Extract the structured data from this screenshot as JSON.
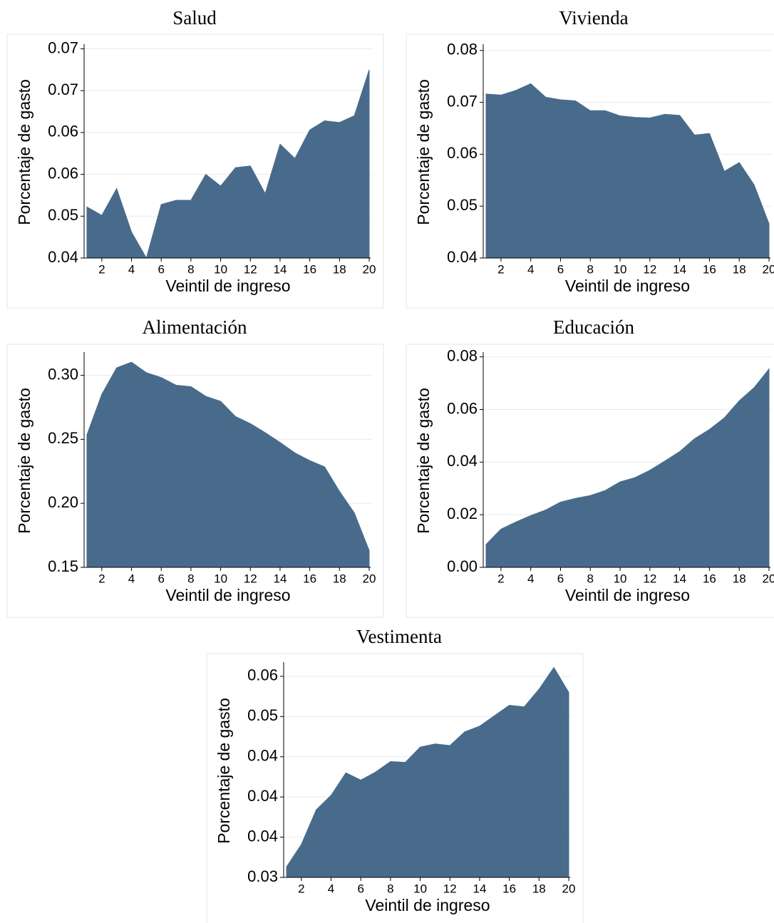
{
  "chart_data": [
    {
      "type": "area",
      "title": "Salud",
      "x_label": "Veintil de ingreso",
      "y_label": "Porcentaje de gasto",
      "color": "#486b8c",
      "x": [
        1,
        2,
        3,
        4,
        5,
        6,
        7,
        8,
        9,
        10,
        11,
        12,
        13,
        14,
        15,
        16,
        17,
        18,
        19,
        20
      ],
      "values": [
        0.0511,
        0.0501,
        0.0533,
        0.0481,
        0.045,
        0.0514,
        0.0519,
        0.0519,
        0.055,
        0.0536,
        0.0558,
        0.056,
        0.0527,
        0.0586,
        0.0569,
        0.0603,
        0.0614,
        0.0612,
        0.062,
        0.0675
      ],
      "xlim": [
        1,
        20
      ],
      "xticks": [
        2,
        4,
        6,
        8,
        10,
        12,
        14,
        16,
        18,
        20
      ],
      "ylim": [
        0.045,
        0.0703
      ],
      "yticks": [
        {
          "value": 0.045,
          "label": "0.04"
        },
        {
          "value": 0.05,
          "label": "0.05"
        },
        {
          "value": 0.055,
          "label": "0.06"
        },
        {
          "value": 0.06,
          "label": "0.06"
        },
        {
          "value": 0.065,
          "label": "0.07"
        },
        {
          "value": 0.07,
          "label": "0.07"
        }
      ],
      "grid": true
    },
    {
      "type": "area",
      "title": "Vivienda",
      "x_label": "Veintil de ingreso",
      "y_label": "Porcentaje de gasto",
      "color": "#486b8c",
      "x": [
        1,
        2,
        3,
        4,
        5,
        6,
        7,
        8,
        9,
        10,
        11,
        12,
        13,
        14,
        15,
        16,
        17,
        18,
        19,
        20
      ],
      "values": [
        0.0716,
        0.0714,
        0.0723,
        0.0736,
        0.071,
        0.0705,
        0.0703,
        0.0684,
        0.0684,
        0.0674,
        0.0671,
        0.067,
        0.0677,
        0.0675,
        0.0637,
        0.064,
        0.0567,
        0.0584,
        0.0541,
        0.0466
      ],
      "xlim": [
        1,
        20
      ],
      "xticks": [
        2,
        4,
        6,
        8,
        10,
        12,
        14,
        16,
        18,
        20
      ],
      "ylim": [
        0.04,
        0.0808
      ],
      "yticks": [
        0.04,
        0.05,
        0.06,
        0.07,
        0.08
      ],
      "grid": true
    },
    {
      "type": "area",
      "title": "Alimentación",
      "x_label": "Veintil de ingreso",
      "y_label": "Porcentaje de gasto",
      "color": "#486b8c",
      "x": [
        1,
        2,
        3,
        4,
        5,
        6,
        7,
        8,
        9,
        10,
        11,
        12,
        13,
        14,
        15,
        16,
        17,
        18,
        19,
        20
      ],
      "values": [
        0.2536,
        0.2852,
        0.3059,
        0.3103,
        0.3021,
        0.2983,
        0.2923,
        0.2912,
        0.2836,
        0.2797,
        0.2678,
        0.2623,
        0.2552,
        0.2476,
        0.2394,
        0.2334,
        0.2285,
        0.2094,
        0.1925,
        0.1631
      ],
      "xlim": [
        1,
        20
      ],
      "xticks": [
        2,
        4,
        6,
        8,
        10,
        12,
        14,
        16,
        18,
        20
      ],
      "ylim": [
        0.15,
        0.3165
      ],
      "yticks": [
        0.15,
        {
          "value": 0.2,
          "label": "0.20"
        },
        0.25,
        {
          "value": 0.3,
          "label": "0.30"
        }
      ],
      "grid": true
    },
    {
      "type": "area",
      "title": "Educación",
      "x_label": "Veintil de ingreso",
      "y_label": "Porcentaje de gasto",
      "color": "#486b8c",
      "x": [
        1,
        2,
        3,
        4,
        5,
        6,
        7,
        8,
        9,
        10,
        11,
        12,
        13,
        14,
        15,
        16,
        17,
        18,
        19,
        20
      ],
      "values": [
        0.0087,
        0.0145,
        0.0172,
        0.0197,
        0.0218,
        0.0248,
        0.0262,
        0.0273,
        0.0292,
        0.0325,
        0.0341,
        0.0369,
        0.0404,
        0.044,
        0.0489,
        0.0524,
        0.0568,
        0.0633,
        0.0683,
        0.0754
      ],
      "xlim": [
        1,
        20
      ],
      "xticks": [
        2,
        4,
        6,
        8,
        10,
        12,
        14,
        16,
        18,
        20
      ],
      "ylim": [
        0,
        0.081
      ],
      "yticks": [
        {
          "value": 0,
          "label": "0.00"
        },
        0.02,
        0.04,
        0.06,
        0.08
      ],
      "grid": true
    },
    {
      "type": "area",
      "title": "Vestimenta",
      "x_label": "Veintil de ingreso",
      "y_label": "Porcentaje de gasto",
      "color": "#486b8c",
      "x": [
        1,
        2,
        3,
        4,
        5,
        6,
        7,
        8,
        9,
        10,
        11,
        12,
        13,
        14,
        15,
        16,
        17,
        18,
        19,
        20
      ],
      "values": [
        0.0313,
        0.0341,
        0.0384,
        0.0402,
        0.043,
        0.0421,
        0.0431,
        0.0444,
        0.0443,
        0.0462,
        0.0466,
        0.0464,
        0.0481,
        0.0488,
        0.0501,
        0.0514,
        0.0512,
        0.0534,
        0.0561,
        0.053
      ],
      "xlim": [
        1,
        20
      ],
      "xticks": [
        2,
        4,
        6,
        8,
        10,
        12,
        14,
        16,
        18,
        20
      ],
      "ylim": [
        0.03,
        0.0565
      ],
      "yticks": [
        0.03,
        {
          "value": 0.035,
          "label": "0.04"
        },
        {
          "value": 0.04,
          "label": "0.04"
        },
        {
          "value": 0.045,
          "label": "0.04"
        },
        0.05,
        {
          "value": 0.055,
          "label": "0.06"
        }
      ],
      "grid": true
    }
  ]
}
